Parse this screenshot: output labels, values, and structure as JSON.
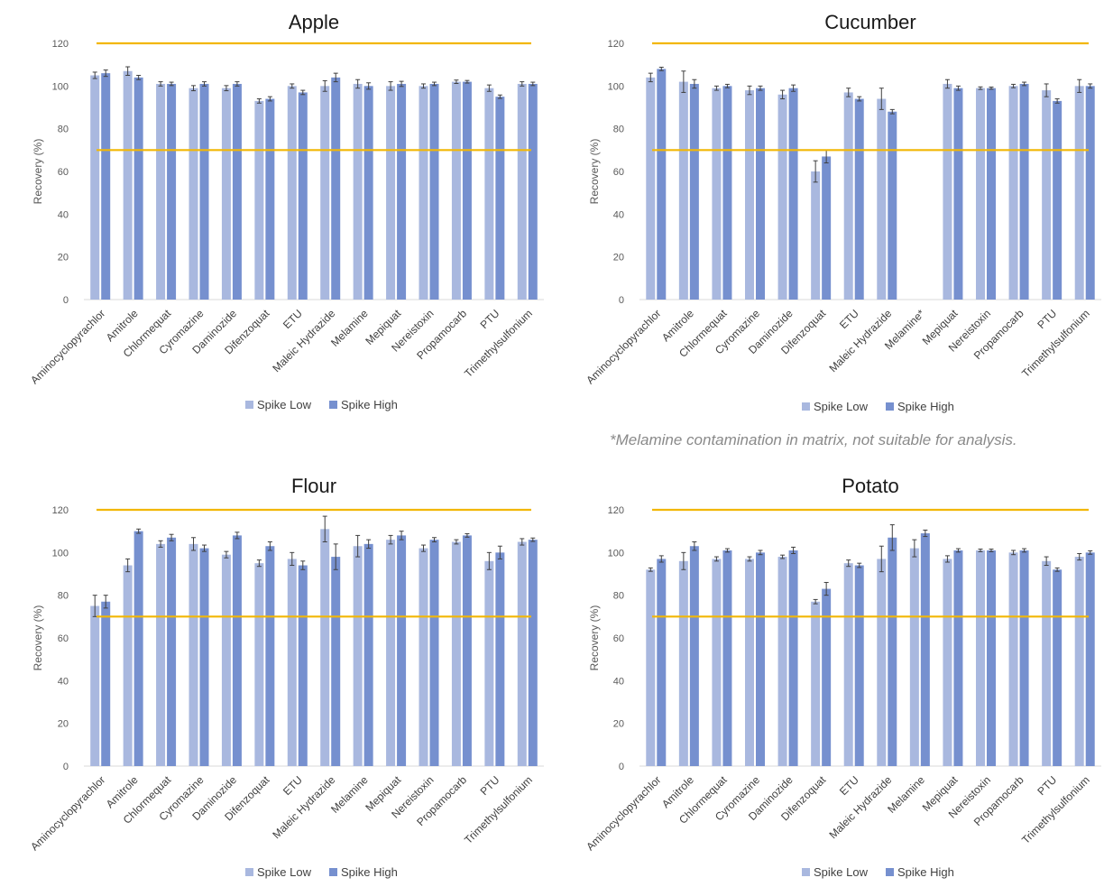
{
  "legend": {
    "low": "Spike Low",
    "high": "Spike High"
  },
  "colors": {
    "low": "#a9b8df",
    "high": "#7690cf",
    "threshold": "#f2b705",
    "error_bar": "#404040",
    "grid_axis": "#d9d9d9"
  },
  "note": "*Melamine contamination in matrix, not suitable for analysis.",
  "chart_data": [
    {
      "type": "bar",
      "title": "Apple",
      "ylabel": "Recovery (%)",
      "ylim": [
        0,
        120
      ],
      "yticks": [
        0,
        20,
        40,
        60,
        80,
        100,
        120
      ],
      "reference_lines": [
        70,
        120
      ],
      "legend": "bottom",
      "categories": [
        "Aminocyclopyrachlor",
        "Amitrole",
        "Chlormequat",
        "Cyromazine",
        "Daminozide",
        "Difenzoquat",
        "ETU",
        "Maleic Hydrazide",
        "Melamine",
        "Mepiquat",
        "Nereistoxin",
        "Propamocarb",
        "PTU",
        "Trimethylsulfonium"
      ],
      "series": [
        {
          "name": "Spike Low",
          "values": [
            105,
            107,
            101,
            99,
            99,
            93,
            100,
            100,
            101,
            100,
            100,
            102,
            99,
            101
          ],
          "errors": [
            1.5,
            2,
            1,
            1.2,
            1.2,
            1,
            1,
            2.5,
            2,
            2,
            1,
            0.8,
            1.5,
            1
          ]
        },
        {
          "name": "Spike High",
          "values": [
            106,
            104,
            101,
            101,
            101,
            94,
            97,
            104,
            100,
            101,
            101,
            102,
            95,
            101
          ],
          "errors": [
            1.5,
            1,
            0.8,
            1,
            1,
            1,
            1,
            2,
            1.5,
            1.2,
            0.8,
            0.6,
            0.8,
            0.8
          ]
        }
      ]
    },
    {
      "type": "bar",
      "title": "Cucumber",
      "ylabel": "Recovery (%)",
      "ylim": [
        0,
        120
      ],
      "yticks": [
        0,
        20,
        40,
        60,
        80,
        100,
        120
      ],
      "reference_lines": [
        70,
        120
      ],
      "legend": "bottom",
      "categories": [
        "Aminocyclopyrachlor",
        "Amitrole",
        "Chlormequat",
        "Cyromazine",
        "Daminozide",
        "Difenzoquat",
        "ETU",
        "Maleic Hydrazide",
        "Melamine*",
        "Mepiquat",
        "Nereistoxin",
        "Propamocarb",
        "PTU",
        "Trimethylsulfonium"
      ],
      "series": [
        {
          "name": "Spike Low",
          "values": [
            104,
            102,
            99,
            98,
            96,
            60,
            97,
            94,
            null,
            101,
            99,
            100,
            98,
            100
          ],
          "errors": [
            2,
            5,
            1,
            2,
            2,
            5,
            2,
            5,
            0,
            2,
            0.6,
            0.8,
            3,
            3
          ]
        },
        {
          "name": "Spike High",
          "values": [
            108,
            101,
            100,
            99,
            99,
            67,
            94,
            88,
            null,
            99,
            99,
            101,
            93,
            100
          ],
          "errors": [
            0.8,
            2,
            0.8,
            1,
            1.5,
            3,
            1,
            1,
            0,
            1,
            0.5,
            0.8,
            1,
            1
          ]
        }
      ]
    },
    {
      "type": "bar",
      "title": "Flour",
      "ylabel": "Recovery (%)",
      "ylim": [
        0,
        120
      ],
      "yticks": [
        0,
        20,
        40,
        60,
        80,
        100,
        120
      ],
      "reference_lines": [
        70,
        120
      ],
      "legend": "bottom",
      "categories": [
        "Aminocyclopyrachlor",
        "Amitrole",
        "Chlormequat",
        "Cyromazine",
        "Daminozide",
        "Difenzoquat",
        "ETU",
        "Maleic Hydrazide",
        "Melamine",
        "Mepiquat",
        "Nereistoxin",
        "Propamocarb",
        "PTU",
        "Trimethylsulfonium"
      ],
      "series": [
        {
          "name": "Spike Low",
          "values": [
            75,
            94,
            104,
            104,
            99,
            95,
            97,
            111,
            103,
            106,
            102,
            105,
            96,
            105
          ],
          "errors": [
            5,
            3,
            1.5,
            3,
            1.5,
            1.5,
            3,
            6,
            5,
            2,
            1.5,
            1,
            4,
            1.5
          ]
        },
        {
          "name": "Spike High",
          "values": [
            77,
            110,
            107,
            102,
            108,
            103,
            94,
            98,
            104,
            108,
            106,
            108,
            100,
            106
          ],
          "errors": [
            3,
            1,
            1.5,
            1.5,
            1.5,
            2,
            2,
            6,
            2,
            2,
            1,
            0.8,
            3,
            0.8
          ]
        }
      ]
    },
    {
      "type": "bar",
      "title": "Potato",
      "ylabel": "Recovery (%)",
      "ylim": [
        0,
        120
      ],
      "yticks": [
        0,
        20,
        40,
        60,
        80,
        100,
        120
      ],
      "reference_lines": [
        70,
        120
      ],
      "legend": "bottom",
      "categories": [
        "Aminocyclopyrachlor",
        "Amitrole",
        "Chlormequat",
        "Cyromazine",
        "Daminozide",
        "Difenzoquat",
        "ETU",
        "Maleic Hydrazide",
        "Melamine",
        "Mepiquat",
        "Nereistoxin",
        "Propamocarb",
        "PTU",
        "Trimethylsulfonium"
      ],
      "series": [
        {
          "name": "Spike Low",
          "values": [
            92,
            96,
            97,
            97,
            98,
            77,
            95,
            97,
            102,
            97,
            101,
            100,
            96,
            98
          ],
          "errors": [
            0.8,
            4,
            1,
            1,
            0.8,
            1,
            1.5,
            6,
            4,
            1.5,
            0.6,
            1,
            2,
            1.5
          ]
        },
        {
          "name": "Spike High",
          "values": [
            97,
            103,
            101,
            100,
            101,
            83,
            94,
            107,
            109,
            101,
            101,
            101,
            92,
            100
          ],
          "errors": [
            1.5,
            2,
            0.8,
            1,
            1.5,
            3,
            1,
            6,
            1.5,
            0.8,
            0.6,
            0.8,
            0.8,
            0.8
          ]
        }
      ]
    }
  ]
}
